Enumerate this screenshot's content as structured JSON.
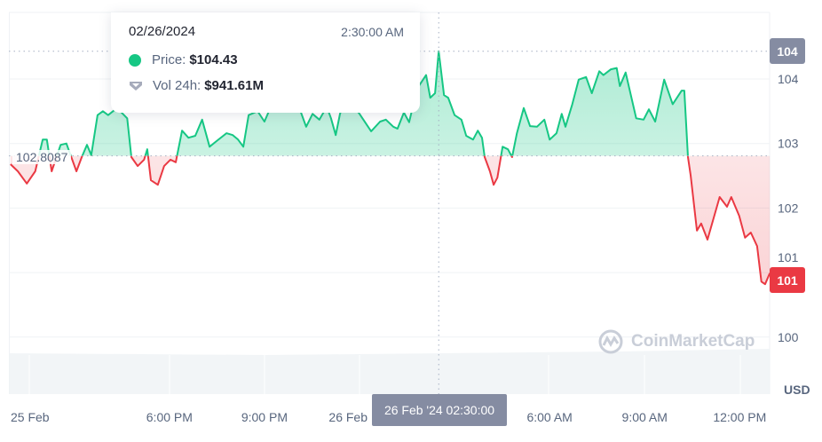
{
  "chart_data": {
    "type": "area",
    "currency_label": "USD",
    "baseline": "102.8087",
    "baseline_value": 102.8087,
    "current_price_badge": "101",
    "hover_price_badge": "104",
    "y_ticks": [
      "104",
      "103",
      "102",
      "101",
      "100"
    ],
    "y_tick_values": [
      104,
      103,
      102,
      101,
      100
    ],
    "ylim": [
      99.7,
      104.6
    ],
    "x_ticks": [
      {
        "label": "25 Feb",
        "t": "2024-02-25 12:40"
      },
      {
        "label": "6:00 PM",
        "t": "2024-02-25 18:00"
      },
      {
        "label": "9:00 PM",
        "t": "2024-02-25 21:00"
      },
      {
        "label": "26 Feb",
        "t": "2024-02-26 00:00"
      },
      {
        "label": "6:00 AM",
        "t": "2024-02-26 06:00"
      },
      {
        "label": "9:00 AM",
        "t": "2024-02-26 09:00"
      },
      {
        "label": "12:00 PM",
        "t": "2024-02-26 12:00"
      }
    ],
    "xlim": [
      "2024-02-25 12:56",
      "2024-02-26 12:57"
    ],
    "grid": true,
    "colors": {
      "up": "#16c784",
      "down": "#ea3943",
      "badge_gray": "#858ca2"
    },
    "series": [
      {
        "points": [
          [
            "2024-02-25 12:59",
            102.68
          ],
          [
            "2024-02-25 13:13",
            102.57
          ],
          [
            "2024-02-25 13:30",
            102.38
          ],
          [
            "2024-02-25 13:46",
            102.57
          ],
          [
            "2024-02-25 14:00",
            103.06
          ],
          [
            "2024-02-25 14:08",
            103.06
          ],
          [
            "2024-02-25 14:17",
            102.57
          ],
          [
            "2024-02-25 14:34",
            102.98
          ],
          [
            "2024-02-25 14:45",
            103.0
          ],
          [
            "2024-02-25 15:04",
            102.57
          ],
          [
            "2024-02-25 15:14",
            102.79
          ],
          [
            "2024-02-25 15:24",
            102.98
          ],
          [
            "2024-02-25 15:32",
            102.82
          ],
          [
            "2024-02-25 15:44",
            103.44
          ],
          [
            "2024-02-25 15:54",
            103.5
          ],
          [
            "2024-02-25 16:04",
            103.44
          ],
          [
            "2024-02-25 16:21",
            103.55
          ],
          [
            "2024-02-25 16:40",
            103.39
          ],
          [
            "2024-02-25 16:48",
            102.79
          ],
          [
            "2024-02-25 17:00",
            102.65
          ],
          [
            "2024-02-25 17:12",
            102.75
          ],
          [
            "2024-02-25 17:18",
            102.91
          ],
          [
            "2024-02-25 17:25",
            102.43
          ],
          [
            "2024-02-25 17:38",
            102.36
          ],
          [
            "2024-02-25 17:50",
            102.65
          ],
          [
            "2024-02-25 18:02",
            102.75
          ],
          [
            "2024-02-25 18:12",
            102.71
          ],
          [
            "2024-02-25 18:24",
            103.2
          ],
          [
            "2024-02-25 18:36",
            103.09
          ],
          [
            "2024-02-25 18:49",
            103.12
          ],
          [
            "2024-02-25 19:02",
            103.37
          ],
          [
            "2024-02-25 19:16",
            102.95
          ],
          [
            "2024-02-25 19:31",
            103.05
          ],
          [
            "2024-02-25 19:48",
            103.16
          ],
          [
            "2024-02-25 20:00",
            103.13
          ],
          [
            "2024-02-25 20:10",
            103.06
          ],
          [
            "2024-02-25 20:20",
            102.95
          ],
          [
            "2024-02-25 20:30",
            103.44
          ],
          [
            "2024-02-25 20:47",
            103.5
          ],
          [
            "2024-02-25 21:00",
            103.34
          ],
          [
            "2024-02-25 21:12",
            103.57
          ],
          [
            "2024-02-25 21:37",
            103.64
          ],
          [
            "2024-02-25 21:59",
            103.71
          ],
          [
            "2024-02-25 22:19",
            103.26
          ],
          [
            "2024-02-25 22:31",
            103.46
          ],
          [
            "2024-02-25 22:44",
            103.37
          ],
          [
            "2024-02-25 22:58",
            103.57
          ],
          [
            "2024-02-25 23:06",
            103.39
          ],
          [
            "2024-02-25 23:15",
            103.13
          ],
          [
            "2024-02-25 23:23",
            103.46
          ],
          [
            "2024-02-25 23:35",
            103.71
          ],
          [
            "2024-02-26 00:00",
            103.46
          ],
          [
            "2024-02-26 00:22",
            103.19
          ],
          [
            "2024-02-26 00:39",
            103.34
          ],
          [
            "2024-02-26 00:50",
            103.37
          ],
          [
            "2024-02-26 01:04",
            103.26
          ],
          [
            "2024-02-26 01:12",
            103.23
          ],
          [
            "2024-02-26 01:24",
            103.48
          ],
          [
            "2024-02-26 01:34",
            103.33
          ],
          [
            "2024-02-26 01:49",
            103.85
          ],
          [
            "2024-02-26 02:06",
            104.06
          ],
          [
            "2024-02-26 02:14",
            103.71
          ],
          [
            "2024-02-26 02:23",
            103.78
          ],
          [
            "2024-02-26 02:30",
            104.43
          ],
          [
            "2024-02-26 02:40",
            103.75
          ],
          [
            "2024-02-26 02:48",
            103.71
          ],
          [
            "2024-02-26 03:00",
            103.44
          ],
          [
            "2024-02-26 03:13",
            103.37
          ],
          [
            "2024-02-26 03:22",
            103.12
          ],
          [
            "2024-02-26 03:35",
            103.06
          ],
          [
            "2024-02-26 03:44",
            103.2
          ],
          [
            "2024-02-26 03:52",
            103.09
          ],
          [
            "2024-02-26 03:57",
            102.79
          ],
          [
            "2024-02-26 04:07",
            102.57
          ],
          [
            "2024-02-26 04:14",
            102.36
          ],
          [
            "2024-02-26 04:21",
            102.47
          ],
          [
            "2024-02-26 04:31",
            102.95
          ],
          [
            "2024-02-26 04:41",
            102.91
          ],
          [
            "2024-02-26 04:49",
            102.79
          ],
          [
            "2024-02-26 04:58",
            103.16
          ],
          [
            "2024-02-26 05:11",
            103.55
          ],
          [
            "2024-02-26 05:23",
            103.27
          ],
          [
            "2024-02-26 05:36",
            103.26
          ],
          [
            "2024-02-26 05:50",
            103.37
          ],
          [
            "2024-02-26 06:00",
            103.06
          ],
          [
            "2024-02-26 06:13",
            103.16
          ],
          [
            "2024-02-26 06:23",
            103.46
          ],
          [
            "2024-02-26 06:30",
            103.26
          ],
          [
            "2024-02-26 06:43",
            103.61
          ],
          [
            "2024-02-26 06:55",
            103.99
          ],
          [
            "2024-02-26 07:09",
            104.03
          ],
          [
            "2024-02-26 07:20",
            103.78
          ],
          [
            "2024-02-26 07:34",
            104.12
          ],
          [
            "2024-02-26 07:42",
            104.06
          ],
          [
            "2024-02-26 07:56",
            104.15
          ],
          [
            "2024-02-26 08:07",
            104.17
          ],
          [
            "2024-02-26 08:13",
            103.89
          ],
          [
            "2024-02-26 08:24",
            104.1
          ],
          [
            "2024-02-26 08:44",
            103.39
          ],
          [
            "2024-02-26 08:58",
            103.37
          ],
          [
            "2024-02-26 09:08",
            103.53
          ],
          [
            "2024-02-26 09:20",
            103.34
          ],
          [
            "2024-02-26 09:37",
            103.99
          ],
          [
            "2024-02-26 09:53",
            103.61
          ],
          [
            "2024-02-26 10:10",
            103.82
          ],
          [
            "2024-02-26 10:15",
            103.82
          ],
          [
            "2024-02-26 10:22",
            102.79
          ],
          [
            "2024-02-26 10:27",
            102.51
          ],
          [
            "2024-02-26 10:39",
            101.65
          ],
          [
            "2024-02-26 10:47",
            101.76
          ],
          [
            "2024-02-26 10:59",
            101.51
          ],
          [
            "2024-02-26 11:22",
            102.17
          ],
          [
            "2024-02-26 11:36",
            102.02
          ],
          [
            "2024-02-26 11:44",
            102.17
          ],
          [
            "2024-02-26 11:59",
            101.88
          ],
          [
            "2024-02-26 12:10",
            101.54
          ],
          [
            "2024-02-26 12:21",
            101.62
          ],
          [
            "2024-02-26 12:33",
            101.41
          ],
          [
            "2024-02-26 12:41",
            100.86
          ],
          [
            "2024-02-26 12:48",
            100.82
          ],
          [
            "2024-02-26 12:57",
            100.99
          ]
        ]
      }
    ],
    "cursor": {
      "t": "2024-02-26 02:30",
      "label": "26 Feb '24 02:30:00"
    }
  },
  "tooltip": {
    "date": "02/26/2024",
    "time": "2:30:00 AM",
    "price_label": "Price:",
    "price_value": "$104.43",
    "volume_label": "Vol 24h:",
    "volume_value": "$941.61M"
  },
  "watermark": "CoinMarketCap"
}
